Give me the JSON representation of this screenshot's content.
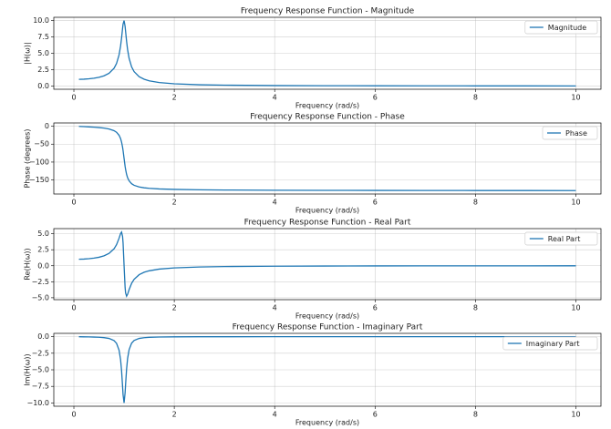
{
  "chart_data": [
    {
      "type": "line",
      "title": "Frequency Response Function - Magnitude",
      "xlabel": "Frequency (rad/s)",
      "ylabel": "|H(ω)|",
      "x": [
        0.1,
        0.2,
        0.3,
        0.4,
        0.5,
        0.6,
        0.7,
        0.8,
        0.85,
        0.9,
        0.93,
        0.95,
        0.97,
        0.98,
        1.0,
        1.02,
        1.03,
        1.05,
        1.07,
        1.1,
        1.15,
        1.2,
        1.3,
        1.4,
        1.5,
        1.7,
        2,
        2.5,
        3,
        4,
        5,
        6,
        7,
        8,
        9,
        10
      ],
      "series": [
        {
          "name": "Magnitude",
          "color": "#1f77b4",
          "values": [
            1.01,
            1.041,
            1.098,
            1.189,
            1.33,
            1.556,
            1.943,
            2.712,
            3.446,
            4.757,
            6.097,
            7.346,
            8.804,
            9.461,
            10,
            9.115,
            8.357,
            6.815,
            5.552,
            4.218,
            2.921,
            2.193,
            1.424,
            1.031,
            0.794,
            0.527,
            0.333,
            0.19,
            0.125,
            0.0667,
            0.0417,
            0.0286,
            0.0208,
            0.0159,
            0.0125,
            0.0101
          ]
        }
      ],
      "xlim": [
        -0.4,
        10.5
      ],
      "xticks": [
        0,
        2,
        4,
        6,
        8,
        10
      ],
      "ylim": [
        -0.5,
        10.5
      ],
      "yticks": [
        {
          "value": 0,
          "label": "0.0"
        },
        {
          "value": 2.5,
          "label": "2.5"
        },
        {
          "value": 5,
          "label": "5.0"
        },
        {
          "value": 7.5,
          "label": "7.5"
        },
        {
          "value": 10,
          "label": "10.0"
        }
      ],
      "grid": true,
      "legend": "upper-right"
    },
    {
      "type": "line",
      "title": "Frequency Response Function - Phase",
      "xlabel": "Frequency (rad/s)",
      "ylabel": "Phase (degrees)",
      "x": [
        0.1,
        0.2,
        0.3,
        0.4,
        0.5,
        0.6,
        0.7,
        0.8,
        0.85,
        0.9,
        0.93,
        0.95,
        0.97,
        0.98,
        1.0,
        1.02,
        1.03,
        1.05,
        1.07,
        1.1,
        1.15,
        1.2,
        1.3,
        1.4,
        1.5,
        1.7,
        2,
        2.5,
        3,
        4,
        5,
        6,
        7,
        8,
        9,
        10
      ],
      "series": [
        {
          "name": "Phase",
          "color": "#1f77b4",
          "values": [
            -0.58,
            -1.19,
            -1.89,
            -2.73,
            -3.81,
            -5.36,
            -7.82,
            -12.53,
            -17.03,
            -25.35,
            -34.54,
            -44.26,
            -58.64,
            -68.0,
            -90,
            -111.6,
            -120.6,
            -134.3,
            -143.6,
            -152.35,
            -160.37,
            -164.74,
            -169.33,
            -171.7,
            -173.16,
            -174.86,
            -176.19,
            -177.27,
            -177.85,
            -178.47,
            -178.81,
            -179.02,
            -179.16,
            -179.27,
            -179.36,
            -179.42
          ]
        }
      ],
      "xlim": [
        -0.4,
        10.5
      ],
      "xticks": [
        0,
        2,
        4,
        6,
        8,
        10
      ],
      "ylim": [
        -189,
        9
      ],
      "yticks": [
        0,
        {
          "value": -50,
          "label": "−50"
        },
        {
          "value": -100,
          "label": "−100"
        },
        {
          "value": -150,
          "label": "−150"
        }
      ],
      "grid": true,
      "legend": "upper-right"
    },
    {
      "type": "line",
      "title": "Frequency Response Function - Real Part",
      "xlabel": "Frequency (rad/s)",
      "ylabel": "Re(H(ω))",
      "x": [
        0.1,
        0.2,
        0.3,
        0.4,
        0.5,
        0.6,
        0.7,
        0.8,
        0.85,
        0.9,
        0.93,
        0.95,
        0.97,
        0.98,
        1.0,
        1.02,
        1.03,
        1.05,
        1.07,
        1.1,
        1.15,
        1.2,
        1.3,
        1.4,
        1.5,
        1.7,
        2,
        2.5,
        3,
        4,
        5,
        6,
        7,
        8,
        9,
        10
      ],
      "series": [
        {
          "name": "Real Part",
          "color": "#1f77b4",
          "values": [
            1.01,
            1.041,
            1.098,
            1.188,
            1.327,
            1.549,
            1.925,
            2.647,
            3.295,
            4.299,
            5.022,
            5.261,
            4.581,
            3.545,
            0,
            -3.357,
            -4.253,
            -4.761,
            -4.466,
            -3.737,
            -2.751,
            -2.115,
            -1.4,
            -1.02,
            -0.789,
            -0.525,
            -0.332,
            -0.19,
            -0.125,
            -0.0666,
            -0.0417,
            -0.0286,
            -0.0208,
            -0.0159,
            -0.0125,
            -0.0101
          ]
        }
      ],
      "xlim": [
        -0.4,
        10.5
      ],
      "xticks": [
        0,
        2,
        4,
        6,
        8,
        10
      ],
      "ylim": [
        -5.3,
        5.8
      ],
      "yticks": [
        {
          "value": -5,
          "label": "−5.0"
        },
        {
          "value": -2.5,
          "label": "−2.5"
        },
        {
          "value": 0,
          "label": "0.0"
        },
        {
          "value": 2.5,
          "label": "2.5"
        },
        {
          "value": 5,
          "label": "5.0"
        }
      ],
      "grid": true,
      "legend": "upper-right"
    },
    {
      "type": "line",
      "title": "Frequency Response Function - Imaginary Part",
      "xlabel": "Frequency (rad/s)",
      "ylabel": "Im(H(ω))",
      "x": [
        0.1,
        0.2,
        0.3,
        0.4,
        0.5,
        0.6,
        0.7,
        0.8,
        0.85,
        0.9,
        0.93,
        0.95,
        0.97,
        0.98,
        1.0,
        1.02,
        1.03,
        1.05,
        1.07,
        1.1,
        1.15,
        1.2,
        1.3,
        1.4,
        1.5,
        1.7,
        2,
        2.5,
        3,
        4,
        5,
        6,
        7,
        8,
        9,
        10
      ],
      "series": [
        {
          "name": "Imaginary Part",
          "color": "#1f77b4",
          "values": [
            -0.0102,
            -0.0217,
            -0.0362,
            -0.0566,
            -0.0885,
            -0.145,
            -0.264,
            -0.588,
            -1.009,
            -2.036,
            -3.457,
            -5.127,
            -7.518,
            -8.772,
            -10,
            -8.475,
            -7.194,
            -4.877,
            -3.298,
            -1.957,
            -0.981,
            -0.577,
            -0.264,
            -0.149,
            -0.0946,
            -0.0472,
            -0.0221,
            -0.00905,
            -0.00468,
            -0.00178,
            -0.00087,
            -0.00049,
            -0.0003,
            -0.0002,
            -0.00014,
            -0.0001
          ]
        }
      ],
      "xlim": [
        -0.4,
        10.5
      ],
      "xticks": [
        0,
        2,
        4,
        6,
        8,
        10
      ],
      "ylim": [
        -10.5,
        0.5
      ],
      "yticks": [
        {
          "value": 0,
          "label": "0.0"
        },
        {
          "value": -2.5,
          "label": "−2.5"
        },
        {
          "value": -5,
          "label": "−5.0"
        },
        {
          "value": -7.5,
          "label": "−7.5"
        },
        {
          "value": -10,
          "label": "−10.0"
        }
      ],
      "grid": true,
      "legend": "upper-right"
    }
  ]
}
